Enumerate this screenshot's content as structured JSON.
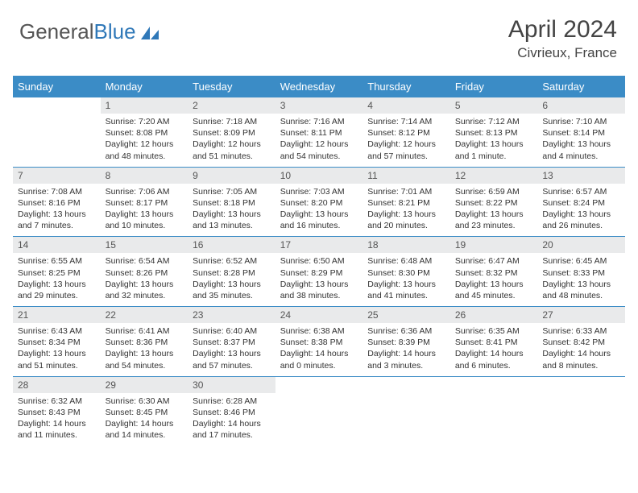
{
  "logo": {
    "part1": "General",
    "part2": "Blue"
  },
  "header": {
    "month_title": "April 2024",
    "location": "Civrieux, France"
  },
  "colors": {
    "header_bg": "#3b8cc6",
    "header_text": "#ffffff",
    "daynum_bg": "#e9eaeb",
    "rule": "#3b8cc6",
    "logo_accent": "#2f78b8"
  },
  "weekdays": [
    "Sunday",
    "Monday",
    "Tuesday",
    "Wednesday",
    "Thursday",
    "Friday",
    "Saturday"
  ],
  "weeks": [
    [
      null,
      {
        "n": "1",
        "sunrise": "7:20 AM",
        "sunset": "8:08 PM",
        "daylight": "12 hours and 48 minutes."
      },
      {
        "n": "2",
        "sunrise": "7:18 AM",
        "sunset": "8:09 PM",
        "daylight": "12 hours and 51 minutes."
      },
      {
        "n": "3",
        "sunrise": "7:16 AM",
        "sunset": "8:11 PM",
        "daylight": "12 hours and 54 minutes."
      },
      {
        "n": "4",
        "sunrise": "7:14 AM",
        "sunset": "8:12 PM",
        "daylight": "12 hours and 57 minutes."
      },
      {
        "n": "5",
        "sunrise": "7:12 AM",
        "sunset": "8:13 PM",
        "daylight": "13 hours and 1 minute."
      },
      {
        "n": "6",
        "sunrise": "7:10 AM",
        "sunset": "8:14 PM",
        "daylight": "13 hours and 4 minutes."
      }
    ],
    [
      {
        "n": "7",
        "sunrise": "7:08 AM",
        "sunset": "8:16 PM",
        "daylight": "13 hours and 7 minutes."
      },
      {
        "n": "8",
        "sunrise": "7:06 AM",
        "sunset": "8:17 PM",
        "daylight": "13 hours and 10 minutes."
      },
      {
        "n": "9",
        "sunrise": "7:05 AM",
        "sunset": "8:18 PM",
        "daylight": "13 hours and 13 minutes."
      },
      {
        "n": "10",
        "sunrise": "7:03 AM",
        "sunset": "8:20 PM",
        "daylight": "13 hours and 16 minutes."
      },
      {
        "n": "11",
        "sunrise": "7:01 AM",
        "sunset": "8:21 PM",
        "daylight": "13 hours and 20 minutes."
      },
      {
        "n": "12",
        "sunrise": "6:59 AM",
        "sunset": "8:22 PM",
        "daylight": "13 hours and 23 minutes."
      },
      {
        "n": "13",
        "sunrise": "6:57 AM",
        "sunset": "8:24 PM",
        "daylight": "13 hours and 26 minutes."
      }
    ],
    [
      {
        "n": "14",
        "sunrise": "6:55 AM",
        "sunset": "8:25 PM",
        "daylight": "13 hours and 29 minutes."
      },
      {
        "n": "15",
        "sunrise": "6:54 AM",
        "sunset": "8:26 PM",
        "daylight": "13 hours and 32 minutes."
      },
      {
        "n": "16",
        "sunrise": "6:52 AM",
        "sunset": "8:28 PM",
        "daylight": "13 hours and 35 minutes."
      },
      {
        "n": "17",
        "sunrise": "6:50 AM",
        "sunset": "8:29 PM",
        "daylight": "13 hours and 38 minutes."
      },
      {
        "n": "18",
        "sunrise": "6:48 AM",
        "sunset": "8:30 PM",
        "daylight": "13 hours and 41 minutes."
      },
      {
        "n": "19",
        "sunrise": "6:47 AM",
        "sunset": "8:32 PM",
        "daylight": "13 hours and 45 minutes."
      },
      {
        "n": "20",
        "sunrise": "6:45 AM",
        "sunset": "8:33 PM",
        "daylight": "13 hours and 48 minutes."
      }
    ],
    [
      {
        "n": "21",
        "sunrise": "6:43 AM",
        "sunset": "8:34 PM",
        "daylight": "13 hours and 51 minutes."
      },
      {
        "n": "22",
        "sunrise": "6:41 AM",
        "sunset": "8:36 PM",
        "daylight": "13 hours and 54 minutes."
      },
      {
        "n": "23",
        "sunrise": "6:40 AM",
        "sunset": "8:37 PM",
        "daylight": "13 hours and 57 minutes."
      },
      {
        "n": "24",
        "sunrise": "6:38 AM",
        "sunset": "8:38 PM",
        "daylight": "14 hours and 0 minutes."
      },
      {
        "n": "25",
        "sunrise": "6:36 AM",
        "sunset": "8:39 PM",
        "daylight": "14 hours and 3 minutes."
      },
      {
        "n": "26",
        "sunrise": "6:35 AM",
        "sunset": "8:41 PM",
        "daylight": "14 hours and 6 minutes."
      },
      {
        "n": "27",
        "sunrise": "6:33 AM",
        "sunset": "8:42 PM",
        "daylight": "14 hours and 8 minutes."
      }
    ],
    [
      {
        "n": "28",
        "sunrise": "6:32 AM",
        "sunset": "8:43 PM",
        "daylight": "14 hours and 11 minutes."
      },
      {
        "n": "29",
        "sunrise": "6:30 AM",
        "sunset": "8:45 PM",
        "daylight": "14 hours and 14 minutes."
      },
      {
        "n": "30",
        "sunrise": "6:28 AM",
        "sunset": "8:46 PM",
        "daylight": "14 hours and 17 minutes."
      },
      null,
      null,
      null,
      null
    ]
  ],
  "labels": {
    "sunrise": "Sunrise: ",
    "sunset": "Sunset: ",
    "daylight": "Daylight: "
  }
}
